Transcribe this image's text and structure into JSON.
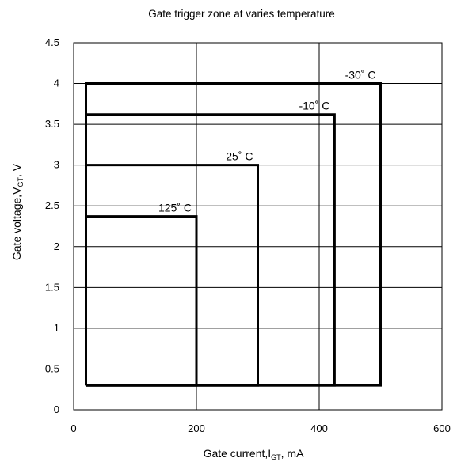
{
  "chart_data": {
    "type": "line",
    "title": "Gate trigger zone at varies temperature",
    "xlabel": {
      "main": "Gate current,I",
      "sub": "GT",
      "unit": ",  mA"
    },
    "ylabel": {
      "main": "Gate voltage,V",
      "sub": "GT",
      "unit": ",  V"
    },
    "xlim": [
      0,
      600
    ],
    "ylim": [
      0,
      4.5
    ],
    "x_ticks": [
      0,
      200,
      400,
      600
    ],
    "x_tick_labels": [
      "0",
      "200",
      "400",
      "600"
    ],
    "y_ticks": [
      0,
      0.5,
      1,
      1.5,
      2,
      2.5,
      3,
      3.5,
      4,
      4.5
    ],
    "y_tick_labels": [
      "0",
      "0.5",
      "1",
      "1.5",
      "2",
      "2.5",
      "3",
      "3.5",
      "4",
      "4.5"
    ],
    "grid": "major x every 200, major y every 0.5",
    "series": [
      {
        "name": "-30° C",
        "label_text": "-30˚ C",
        "x": [
          20,
          20,
          500,
          500,
          20
        ],
        "y": [
          0.3,
          4.0,
          4.0,
          0.3,
          0.3
        ]
      },
      {
        "name": "-10° C",
        "label_text": "-10˚ C",
        "x": [
          20,
          20,
          425,
          425,
          20
        ],
        "y": [
          0.3,
          3.62,
          3.62,
          0.3,
          0.3
        ]
      },
      {
        "name": "25° C",
        "label_text": "25˚ C",
        "x": [
          20,
          20,
          300,
          300,
          20
        ],
        "y": [
          0.3,
          3.0,
          3.0,
          0.3,
          0.3
        ]
      },
      {
        "name": "125° C",
        "label_text": "125˚ C",
        "x": [
          20,
          20,
          200,
          200,
          20
        ],
        "y": [
          0.3,
          2.37,
          2.37,
          0.3,
          0.3
        ]
      }
    ],
    "colors": {
      "line": "#000000",
      "grid": "#000000",
      "background": "#ffffff"
    }
  }
}
